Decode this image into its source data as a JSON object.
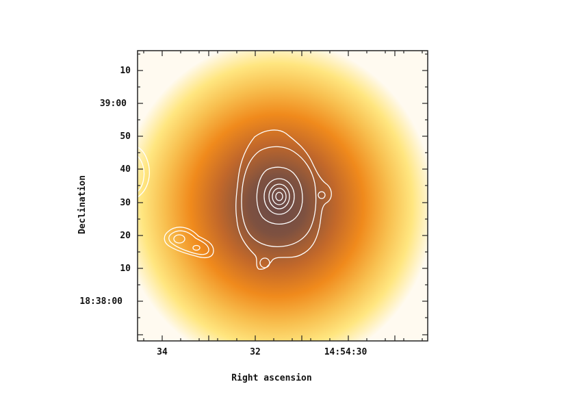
{
  "figure": {
    "xlabel": "Right ascension",
    "ylabel": "Declination",
    "x_ticks": [
      "34",
      "32",
      "14:54:30"
    ],
    "y_ticks": [
      "10",
      "39:00",
      "50",
      "40",
      "30",
      "20",
      "10",
      "18:38:00"
    ]
  },
  "colors": {
    "background": "#ffffff",
    "frame": "#222222",
    "contour": "#ffffff",
    "map_core": "#7a4a3a",
    "map_mid": "#f08a1c",
    "map_outer": "#ffe680",
    "map_edge": "#fffaf0"
  }
}
